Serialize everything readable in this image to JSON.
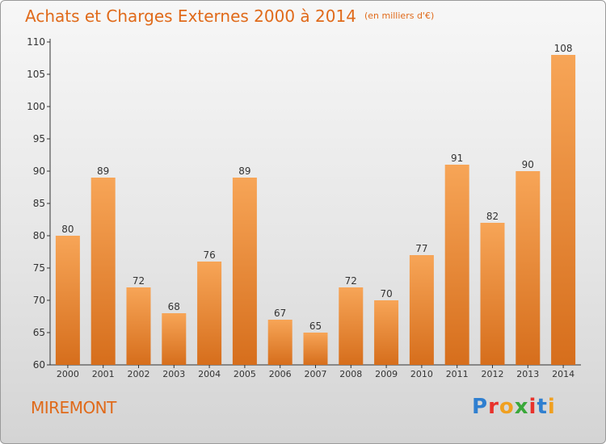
{
  "header": {
    "title": "Achats et Charges Externes 2000 à 2014",
    "unit": "(en milliers d'€)"
  },
  "footer": {
    "town": "MIREMONT",
    "logo_text": "Proxiti",
    "logo_colors": [
      "#2f7fd0",
      "#e8322b",
      "#f0a020",
      "#3aa83a",
      "#e8322b",
      "#2f7fd0",
      "#f0a020"
    ]
  },
  "colors": {
    "accent": "#e06a1a",
    "bar_top": "#f7a557",
    "bar_bottom": "#d66e1c"
  },
  "chart_data": {
    "type": "bar",
    "categories": [
      "2000",
      "2001",
      "2002",
      "2003",
      "2004",
      "2005",
      "2006",
      "2007",
      "2008",
      "2009",
      "2010",
      "2011",
      "2012",
      "2013",
      "2014"
    ],
    "values": [
      80,
      89,
      72,
      68,
      76,
      89,
      67,
      65,
      72,
      70,
      77,
      91,
      82,
      90,
      108
    ],
    "ylim": [
      60,
      110
    ],
    "yticks": [
      60,
      65,
      70,
      75,
      80,
      85,
      90,
      95,
      100,
      105,
      110
    ],
    "grid": false,
    "data_labels": true
  }
}
